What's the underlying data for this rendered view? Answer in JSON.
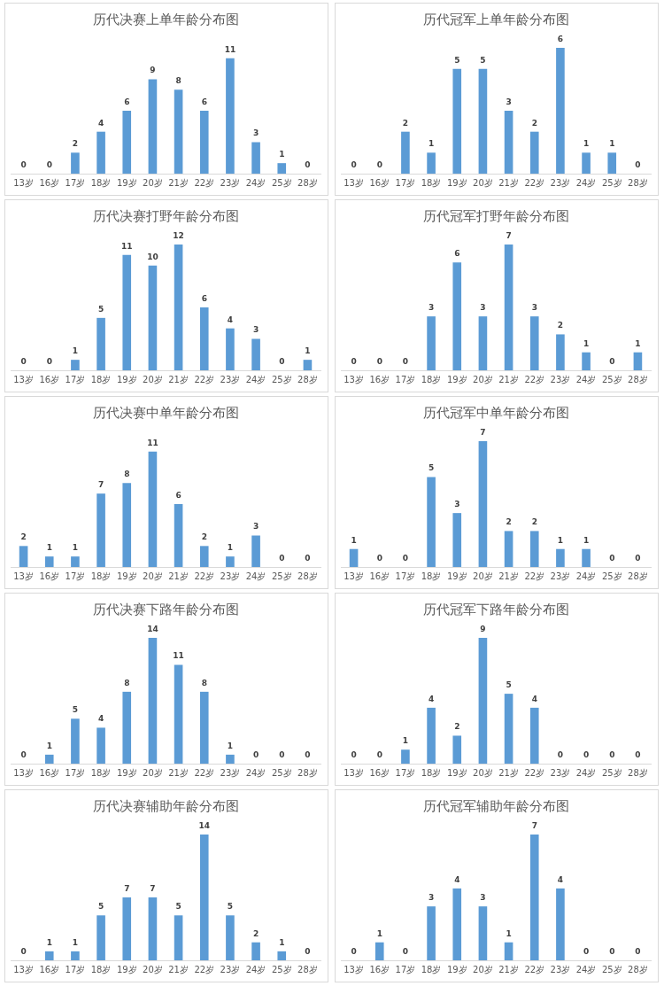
{
  "chart_data": [
    {
      "type": "bar",
      "title": "历代决赛上单年龄分布图",
      "categories": [
        "13岁",
        "16岁",
        "17岁",
        "18岁",
        "19岁",
        "20岁",
        "21岁",
        "22岁",
        "23岁",
        "24岁",
        "25岁",
        "28岁"
      ],
      "values": [
        0,
        0,
        2,
        4,
        6,
        9,
        8,
        6,
        11,
        3,
        1,
        0
      ],
      "color": "#5b9bd5",
      "data_labels": true
    },
    {
      "type": "bar",
      "title": "历代冠军上单年龄分布图",
      "categories": [
        "13岁",
        "16岁",
        "17岁",
        "18岁",
        "19岁",
        "20岁",
        "21岁",
        "22岁",
        "23岁",
        "24岁",
        "25岁",
        "28岁"
      ],
      "values": [
        0,
        0,
        2,
        1,
        5,
        5,
        3,
        2,
        6,
        1,
        1,
        0
      ],
      "color": "#5b9bd5",
      "data_labels": true
    },
    {
      "type": "bar",
      "title": "历代决赛打野年龄分布图",
      "categories": [
        "13岁",
        "16岁",
        "17岁",
        "18岁",
        "19岁",
        "20岁",
        "21岁",
        "22岁",
        "23岁",
        "24岁",
        "25岁",
        "28岁"
      ],
      "values": [
        0,
        0,
        1,
        5,
        11,
        10,
        12,
        6,
        4,
        3,
        0,
        1
      ],
      "color": "#5b9bd5",
      "data_labels": true
    },
    {
      "type": "bar",
      "title": "历代冠军打野年龄分布图",
      "categories": [
        "13岁",
        "16岁",
        "17岁",
        "18岁",
        "19岁",
        "20岁",
        "21岁",
        "22岁",
        "23岁",
        "24岁",
        "25岁",
        "28岁"
      ],
      "values": [
        0,
        0,
        0,
        3,
        6,
        3,
        7,
        3,
        2,
        1,
        0,
        1
      ],
      "color": "#5b9bd5",
      "data_labels": true
    },
    {
      "type": "bar",
      "title": "历代决赛中单年龄分布图",
      "categories": [
        "13岁",
        "16岁",
        "17岁",
        "18岁",
        "19岁",
        "20岁",
        "21岁",
        "22岁",
        "23岁",
        "24岁",
        "25岁",
        "28岁"
      ],
      "values": [
        2,
        1,
        1,
        7,
        8,
        11,
        6,
        2,
        1,
        3,
        0,
        0
      ],
      "color": "#5b9bd5",
      "data_labels": true
    },
    {
      "type": "bar",
      "title": "历代冠军中单年龄分布图",
      "categories": [
        "13岁",
        "16岁",
        "17岁",
        "18岁",
        "19岁",
        "20岁",
        "21岁",
        "22岁",
        "23岁",
        "24岁",
        "25岁",
        "28岁"
      ],
      "values": [
        1,
        0,
        0,
        5,
        3,
        7,
        2,
        2,
        1,
        1,
        0,
        0
      ],
      "color": "#5b9bd5",
      "data_labels": true
    },
    {
      "type": "bar",
      "title": "历代决赛下路年龄分布图",
      "categories": [
        "13岁",
        "16岁",
        "17岁",
        "18岁",
        "19岁",
        "20岁",
        "21岁",
        "22岁",
        "23岁",
        "24岁",
        "25岁",
        "28岁"
      ],
      "values": [
        0,
        1,
        5,
        4,
        8,
        14,
        11,
        8,
        1,
        0,
        0,
        0
      ],
      "color": "#5b9bd5",
      "data_labels": true
    },
    {
      "type": "bar",
      "title": "历代冠军下路年龄分布图",
      "categories": [
        "13岁",
        "16岁",
        "17岁",
        "18岁",
        "19岁",
        "20岁",
        "21岁",
        "22岁",
        "23岁",
        "24岁",
        "25岁",
        "28岁"
      ],
      "values": [
        0,
        0,
        1,
        4,
        2,
        9,
        5,
        4,
        0,
        0,
        0,
        0
      ],
      "color": "#5b9bd5",
      "data_labels": true
    },
    {
      "type": "bar",
      "title": "历代决赛辅助年龄分布图",
      "categories": [
        "13岁",
        "16岁",
        "17岁",
        "18岁",
        "19岁",
        "20岁",
        "21岁",
        "22岁",
        "23岁",
        "24岁",
        "25岁",
        "28岁"
      ],
      "values": [
        0,
        1,
        1,
        5,
        7,
        7,
        5,
        14,
        5,
        2,
        1,
        0
      ],
      "color": "#5b9bd5",
      "data_labels": true
    },
    {
      "type": "bar",
      "title": "历代冠军辅助年龄分布图",
      "categories": [
        "13岁",
        "16岁",
        "17岁",
        "18岁",
        "19岁",
        "20岁",
        "21岁",
        "22岁",
        "23岁",
        "24岁",
        "25岁",
        "28岁"
      ],
      "values": [
        0,
        1,
        0,
        3,
        4,
        3,
        1,
        7,
        4,
        0,
        0,
        0
      ],
      "color": "#5b9bd5",
      "data_labels": true
    }
  ]
}
